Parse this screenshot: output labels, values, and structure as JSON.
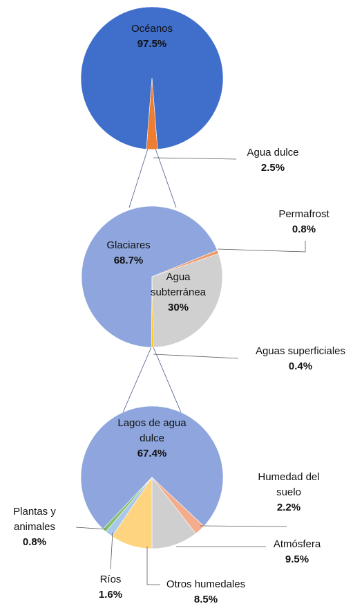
{
  "chart_data": [
    {
      "type": "pie",
      "categories": [
        "Océanos",
        "Agua dulce"
      ],
      "values": [
        97.5,
        2.5
      ],
      "value_labels": [
        "97.5%",
        "2.5%"
      ],
      "colors": [
        "#3f6fcb",
        "#ed7d31"
      ]
    },
    {
      "type": "pie",
      "categories": [
        "Glaciares",
        "Permafrost",
        "Agua subterránea",
        "Aguas superficiales"
      ],
      "values": [
        68.7,
        0.8,
        30,
        0.4
      ],
      "value_labels": [
        "68.7%",
        "0.8%",
        "30%",
        "0.4%"
      ],
      "colors": [
        "#8ea6dd",
        "#f09a6a",
        "#d0d0d0",
        "#ffc000"
      ]
    },
    {
      "type": "pie",
      "categories": [
        "Lagos de agua dulce",
        "Humedad del suelo",
        "Atmósfera",
        "Otros humedales",
        "Ríos",
        "Plantas y animales"
      ],
      "values": [
        67.4,
        2.2,
        9.5,
        8.5,
        1.6,
        0.8
      ],
      "value_labels": [
        "67.4%",
        "2.2%",
        "9.5%",
        "8.5%",
        "1.6%",
        "0.8%"
      ],
      "colors": [
        "#8ea6dd",
        "#f4ad8c",
        "#cfcfcf",
        "#ffd480",
        "#a9c8ea",
        "#84c06a"
      ]
    }
  ]
}
